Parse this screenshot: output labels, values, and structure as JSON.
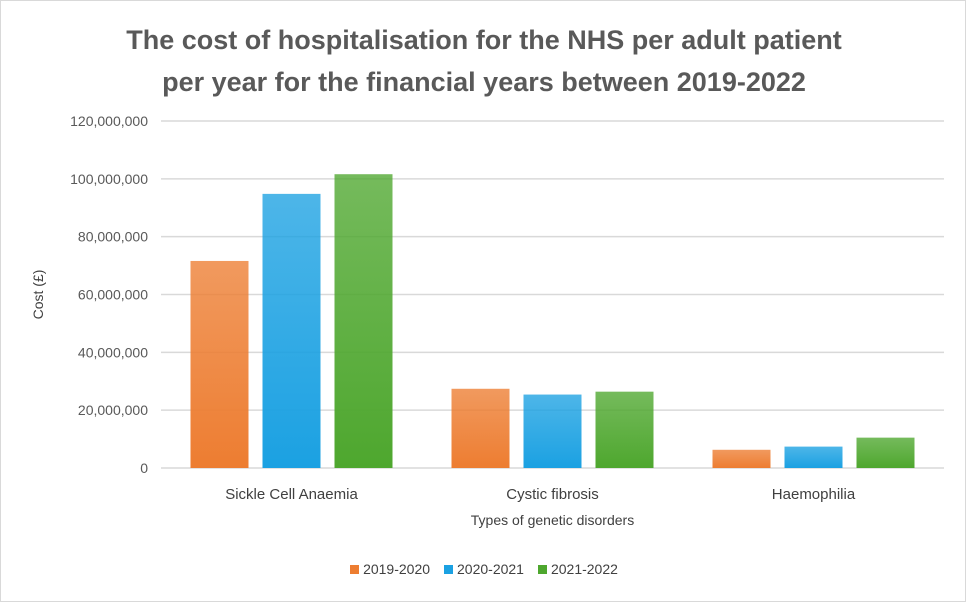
{
  "chart_data": {
    "type": "bar",
    "title": "The cost of hospitalisation for the NHS per adult patient per year for the financial years between 2019-2022",
    "title_lines": [
      "The cost of hospitalisation for the NHS per adult patient",
      "per year for the financial years between 2019-2022"
    ],
    "xlabel": "Types of genetic disorders",
    "ylabel": "Cost (£)",
    "ylim": [
      0,
      120000000
    ],
    "yticks": [
      0,
      20000000,
      40000000,
      60000000,
      80000000,
      100000000,
      120000000
    ],
    "ytick_labels": [
      "0",
      "20,000,000",
      "40,000,000",
      "60,000,000",
      "80,000,000",
      "100,000,000",
      "120,000,000"
    ],
    "categories": [
      "Sickle Cell Anaemia",
      "Cystic fibrosis",
      "Haemophilia"
    ],
    "grid": true,
    "legend_position": "bottom",
    "series": [
      {
        "name": "2019-2020",
        "color": "#ED7D31",
        "values": [
          71600000,
          27400000,
          6300000
        ]
      },
      {
        "name": "2020-2021",
        "color": "#1BA1E2",
        "values": [
          94800000,
          25400000,
          7400000
        ]
      },
      {
        "name": "2021-2022",
        "color": "#4EA72E",
        "values": [
          101600000,
          26400000,
          10500000
        ]
      }
    ]
  }
}
